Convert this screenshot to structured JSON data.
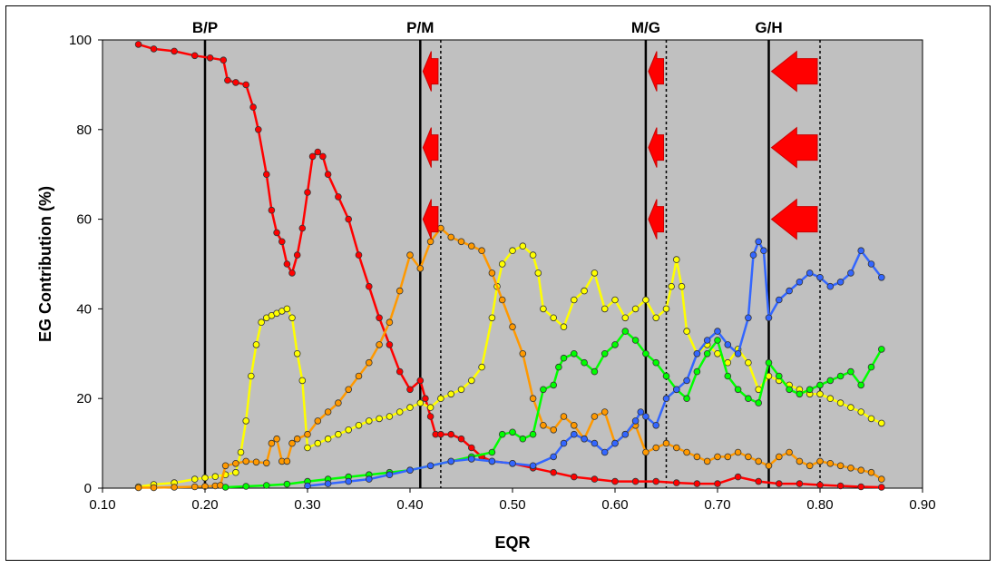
{
  "chart_data": {
    "type": "scatter",
    "title": "",
    "xlabel": "EQR",
    "ylabel": "EG Contribution (%)",
    "xlim": [
      0.1,
      0.9
    ],
    "ylim": [
      0,
      100
    ],
    "x_ticks": [
      "0.10",
      "0.20",
      "0.30",
      "0.40",
      "0.50",
      "0.60",
      "0.70",
      "0.80",
      "0.90"
    ],
    "y_ticks": [
      "0",
      "20",
      "40",
      "60",
      "80",
      "100"
    ],
    "plot_background": "#c0c0c0",
    "grid": false,
    "legend": "none",
    "boundaries": [
      {
        "label": "B/P",
        "x": 0.2
      },
      {
        "label": "P/M",
        "x": 0.41
      },
      {
        "label": "M/G",
        "x": 0.63
      },
      {
        "label": "G/H",
        "x": 0.75
      }
    ],
    "dotted_lines": [
      0.43,
      0.65,
      0.8
    ],
    "arrows": [
      {
        "from_x": 0.43,
        "to_x": 0.41,
        "y": 93
      },
      {
        "from_x": 0.43,
        "to_x": 0.41,
        "y": 76
      },
      {
        "from_x": 0.43,
        "to_x": 0.41,
        "y": 60
      },
      {
        "from_x": 0.65,
        "to_x": 0.63,
        "y": 93
      },
      {
        "from_x": 0.65,
        "to_x": 0.63,
        "y": 76
      },
      {
        "from_x": 0.65,
        "to_x": 0.63,
        "y": 60
      },
      {
        "from_x": 0.8,
        "to_x": 0.75,
        "y": 93
      },
      {
        "from_x": 0.8,
        "to_x": 0.75,
        "y": 76
      },
      {
        "from_x": 0.8,
        "to_x": 0.75,
        "y": 60
      }
    ],
    "arrow_color": "#ff0000",
    "series": [
      {
        "color": "#ff0000",
        "x": [
          0.135,
          0.15,
          0.17,
          0.19,
          0.205,
          0.218,
          0.222,
          0.23,
          0.24,
          0.247,
          0.252,
          0.26,
          0.265,
          0.27,
          0.275,
          0.28,
          0.285,
          0.29,
          0.295,
          0.3,
          0.305,
          0.31,
          0.315,
          0.32,
          0.33,
          0.34,
          0.35,
          0.36,
          0.37,
          0.38,
          0.39,
          0.4,
          0.41,
          0.415,
          0.42,
          0.425,
          0.43,
          0.44,
          0.45,
          0.46,
          0.47,
          0.48,
          0.5,
          0.52,
          0.54,
          0.56,
          0.58,
          0.6,
          0.62,
          0.64,
          0.66,
          0.68,
          0.7,
          0.72,
          0.74,
          0.76,
          0.78,
          0.8,
          0.82,
          0.84,
          0.86
        ],
        "y": [
          99,
          98,
          97.5,
          96.5,
          96,
          95.5,
          91,
          90.5,
          90,
          85,
          80,
          70,
          62,
          57,
          55,
          50,
          48,
          52,
          58,
          66,
          74,
          75,
          74,
          70,
          65,
          60,
          52,
          45,
          38,
          32,
          26,
          22,
          24,
          20,
          16,
          12,
          12,
          12,
          11,
          9,
          7,
          6,
          5.5,
          4.5,
          3.5,
          2.5,
          2,
          1.5,
          1.5,
          1.5,
          1.2,
          1,
          1,
          2.5,
          1.5,
          1,
          1,
          0.7,
          0.5,
          0.3,
          0.2
        ]
      },
      {
        "color": "#ffff00",
        "x": [
          0.135,
          0.15,
          0.17,
          0.19,
          0.2,
          0.21,
          0.22,
          0.23,
          0.235,
          0.24,
          0.245,
          0.25,
          0.255,
          0.26,
          0.265,
          0.27,
          0.275,
          0.28,
          0.285,
          0.29,
          0.295,
          0.3,
          0.31,
          0.32,
          0.33,
          0.34,
          0.35,
          0.36,
          0.37,
          0.38,
          0.39,
          0.4,
          0.41,
          0.42,
          0.43,
          0.44,
          0.45,
          0.46,
          0.47,
          0.48,
          0.485,
          0.49,
          0.5,
          0.51,
          0.52,
          0.525,
          0.53,
          0.54,
          0.55,
          0.56,
          0.57,
          0.58,
          0.59,
          0.6,
          0.61,
          0.62,
          0.63,
          0.64,
          0.65,
          0.655,
          0.66,
          0.665,
          0.67,
          0.68,
          0.69,
          0.7,
          0.71,
          0.72,
          0.73,
          0.74,
          0.75,
          0.76,
          0.77,
          0.78,
          0.79,
          0.8,
          0.81,
          0.82,
          0.83,
          0.84,
          0.85,
          0.86
        ],
        "y": [
          0.3,
          0.8,
          1.2,
          2,
          2.3,
          2.6,
          3,
          3.5,
          8,
          15,
          25,
          32,
          37,
          38,
          38.5,
          39,
          39.5,
          40,
          38,
          30,
          24,
          9,
          10,
          11,
          12,
          13,
          14,
          15,
          15.5,
          16,
          17,
          18,
          19,
          18,
          20,
          21,
          22,
          24,
          27,
          38,
          45,
          50,
          53,
          54,
          52,
          48,
          40,
          38,
          36,
          42,
          44,
          48,
          40,
          42,
          38,
          40,
          42,
          38,
          40,
          45,
          51,
          45,
          35,
          30,
          32,
          30,
          28,
          31,
          28,
          22,
          25,
          24,
          23,
          22,
          21,
          21,
          20,
          19,
          18,
          17,
          15.5,
          14.5
        ]
      },
      {
        "color": "#ff9900",
        "x": [
          0.135,
          0.15,
          0.17,
          0.19,
          0.2,
          0.21,
          0.215,
          0.22,
          0.23,
          0.24,
          0.25,
          0.26,
          0.265,
          0.27,
          0.275,
          0.28,
          0.285,
          0.29,
          0.3,
          0.31,
          0.32,
          0.33,
          0.34,
          0.35,
          0.36,
          0.37,
          0.38,
          0.39,
          0.4,
          0.41,
          0.42,
          0.43,
          0.44,
          0.45,
          0.46,
          0.47,
          0.48,
          0.49,
          0.5,
          0.51,
          0.52,
          0.53,
          0.54,
          0.55,
          0.56,
          0.57,
          0.58,
          0.59,
          0.6,
          0.61,
          0.62,
          0.63,
          0.64,
          0.65,
          0.66,
          0.67,
          0.68,
          0.69,
          0.7,
          0.71,
          0.72,
          0.73,
          0.74,
          0.75,
          0.76,
          0.77,
          0.78,
          0.79,
          0.8,
          0.81,
          0.82,
          0.83,
          0.84,
          0.85,
          0.86
        ],
        "y": [
          0.1,
          0.1,
          0.2,
          0.3,
          0.4,
          0.5,
          0.6,
          5,
          5.5,
          6,
          5.8,
          5.6,
          10,
          11,
          6,
          6,
          10,
          11,
          12,
          15,
          17,
          19,
          22,
          25,
          28,
          32,
          37,
          44,
          52,
          49,
          55,
          58,
          56,
          55,
          54,
          53,
          48,
          42,
          36,
          30,
          20,
          14,
          13,
          16,
          14,
          11,
          16,
          17,
          10,
          12,
          14,
          8,
          9,
          10,
          9,
          8,
          7,
          6,
          7,
          7,
          8,
          7,
          6,
          5,
          7,
          8,
          6,
          5,
          6,
          5.5,
          5,
          4.5,
          4,
          3.5,
          2
        ]
      },
      {
        "color": "#00ff00",
        "x": [
          0.22,
          0.24,
          0.26,
          0.28,
          0.3,
          0.32,
          0.34,
          0.36,
          0.38,
          0.4,
          0.42,
          0.44,
          0.46,
          0.48,
          0.49,
          0.5,
          0.51,
          0.52,
          0.53,
          0.54,
          0.545,
          0.55,
          0.56,
          0.57,
          0.58,
          0.59,
          0.6,
          0.61,
          0.62,
          0.63,
          0.64,
          0.65,
          0.66,
          0.67,
          0.68,
          0.69,
          0.7,
          0.71,
          0.72,
          0.73,
          0.74,
          0.75,
          0.76,
          0.77,
          0.78,
          0.79,
          0.8,
          0.81,
          0.82,
          0.83,
          0.84,
          0.85,
          0.86
        ],
        "y": [
          0.2,
          0.4,
          0.6,
          0.9,
          1.5,
          2,
          2.5,
          3,
          3.5,
          4,
          5,
          6,
          7,
          8,
          12,
          12.5,
          11,
          12,
          22,
          23,
          27,
          29,
          30,
          28,
          26,
          30,
          32,
          35,
          33,
          30,
          28,
          25,
          22,
          20,
          26,
          30,
          33,
          25,
          22,
          20,
          19,
          28,
          25,
          22,
          21,
          22,
          23,
          24,
          25,
          26,
          23,
          27,
          31
        ]
      },
      {
        "color": "#3366ff",
        "x": [
          0.3,
          0.32,
          0.34,
          0.36,
          0.38,
          0.4,
          0.42,
          0.44,
          0.46,
          0.48,
          0.5,
          0.52,
          0.54,
          0.55,
          0.56,
          0.57,
          0.58,
          0.59,
          0.6,
          0.61,
          0.62,
          0.625,
          0.63,
          0.64,
          0.65,
          0.66,
          0.67,
          0.68,
          0.69,
          0.7,
          0.71,
          0.72,
          0.73,
          0.735,
          0.74,
          0.745,
          0.75,
          0.76,
          0.77,
          0.78,
          0.79,
          0.8,
          0.81,
          0.82,
          0.83,
          0.84,
          0.85,
          0.86
        ],
        "y": [
          0.5,
          1,
          1.5,
          2,
          3,
          4,
          5,
          6,
          6.5,
          6,
          5.5,
          5,
          7,
          10,
          12,
          11,
          10,
          8,
          10,
          12,
          15,
          17,
          16,
          14,
          20,
          22,
          24,
          30,
          33,
          35,
          32,
          30,
          38,
          52,
          55,
          53,
          38,
          42,
          44,
          46,
          48,
          47,
          45,
          46,
          48,
          53,
          50,
          47
        ]
      }
    ]
  }
}
